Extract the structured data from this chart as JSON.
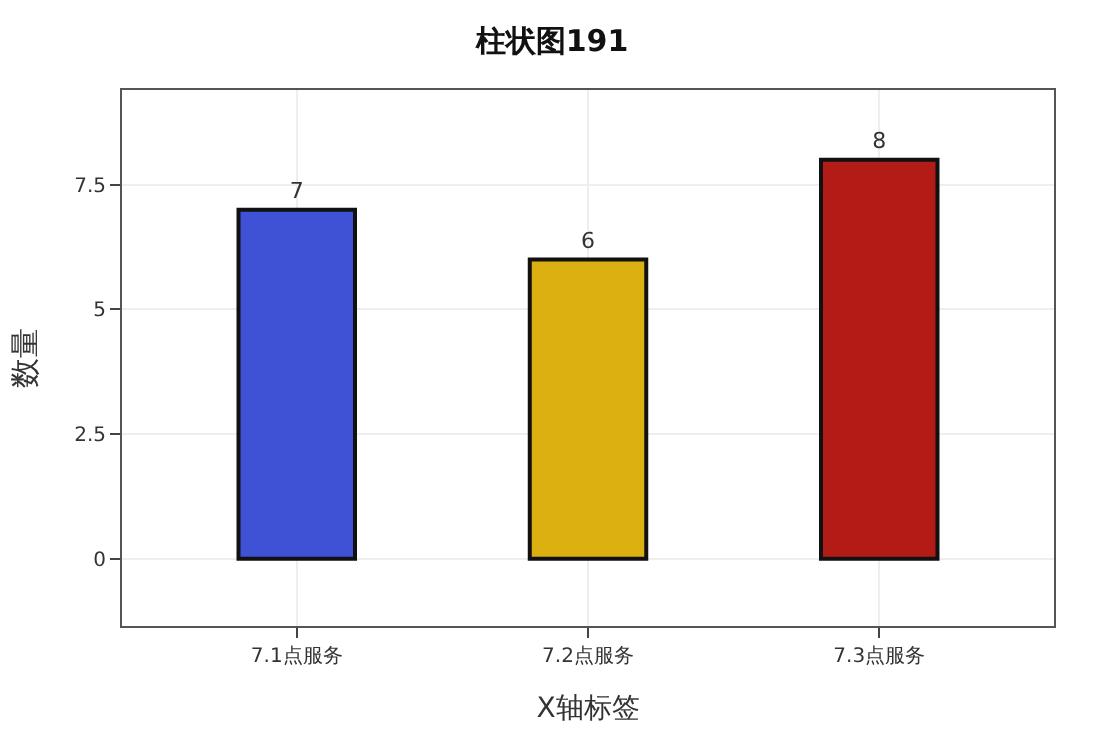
{
  "chart_data": {
    "type": "bar",
    "title": "柱状图191",
    "xlabel": "X轴标签",
    "ylabel": "数量",
    "categories": [
      "7.1点服务",
      "7.2点服务",
      "7.3点服务"
    ],
    "values": [
      7,
      6,
      8
    ],
    "colors": [
      "#3f51d4",
      "#dbb010",
      "#b31b17"
    ],
    "ylim": [
      -1.35,
      9.4
    ],
    "yticks": [
      0,
      2.5,
      5,
      7.5
    ],
    "grid": true,
    "data_labels": true,
    "legend": false
  }
}
